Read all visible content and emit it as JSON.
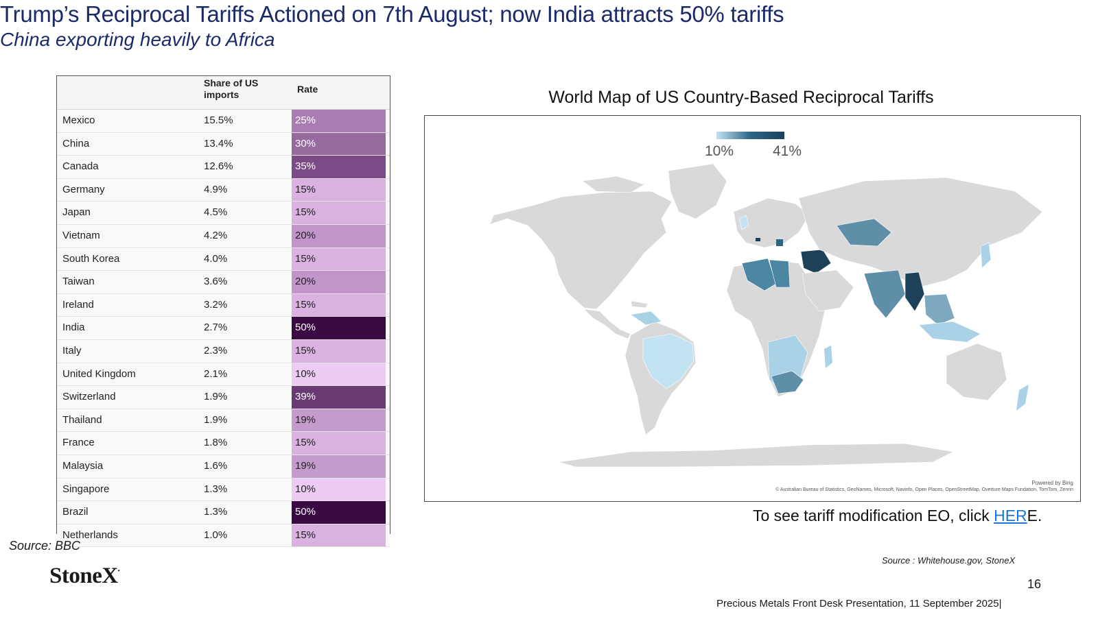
{
  "header": {
    "title": "Trump’s Reciprocal Tariffs Actioned on 7th August; now India attracts 50% tariffs",
    "subtitle": "China exporting heavily to Africa"
  },
  "table": {
    "col_share": "Share of US imports",
    "col_rate": "Rate",
    "rows": [
      {
        "country": "Mexico",
        "share": "15.5%",
        "rate": "25%",
        "color": "#a87db3",
        "text": "#ffffff"
      },
      {
        "country": "China",
        "share": "13.4%",
        "rate": "30%",
        "color": "#966a9f",
        "text": "#ffffff"
      },
      {
        "country": "Canada",
        "share": "12.6%",
        "rate": "35%",
        "color": "#7c4a86",
        "text": "#ffffff"
      },
      {
        "country": "Germany",
        "share": "4.9%",
        "rate": "15%",
        "color": "#d9b2df",
        "text": "#222222"
      },
      {
        "country": "Japan",
        "share": "4.5%",
        "rate": "15%",
        "color": "#d9b2df",
        "text": "#222222"
      },
      {
        "country": "Vietnam",
        "share": "4.2%",
        "rate": "20%",
        "color": "#c295ca",
        "text": "#222222"
      },
      {
        "country": "South Korea",
        "share": "4.0%",
        "rate": "15%",
        "color": "#d9b2df",
        "text": "#222222"
      },
      {
        "country": "Taiwan",
        "share": "3.6%",
        "rate": "20%",
        "color": "#c295ca",
        "text": "#222222"
      },
      {
        "country": "Ireland",
        "share": "3.2%",
        "rate": "15%",
        "color": "#d9b2df",
        "text": "#222222"
      },
      {
        "country": "India",
        "share": "2.7%",
        "rate": "50%",
        "color": "#3b0a45",
        "text": "#ffffff"
      },
      {
        "country": "Italy",
        "share": "2.3%",
        "rate": "15%",
        "color": "#d9b2df",
        "text": "#222222"
      },
      {
        "country": "United Kingdom",
        "share": "2.1%",
        "rate": "10%",
        "color": "#ecccf2",
        "text": "#222222"
      },
      {
        "country": "Switzerland",
        "share": "1.9%",
        "rate": "39%",
        "color": "#6b3a75",
        "text": "#ffffff"
      },
      {
        "country": "Thailand",
        "share": "1.9%",
        "rate": "19%",
        "color": "#c49ccc",
        "text": "#222222"
      },
      {
        "country": "France",
        "share": "1.8%",
        "rate": "15%",
        "color": "#d9b2df",
        "text": "#222222"
      },
      {
        "country": "Malaysia",
        "share": "1.6%",
        "rate": "19%",
        "color": "#c49ccc",
        "text": "#222222"
      },
      {
        "country": "Singapore",
        "share": "1.3%",
        "rate": "10%",
        "color": "#ecccf2",
        "text": "#222222"
      },
      {
        "country": "Brazil",
        "share": "1.3%",
        "rate": "50%",
        "color": "#3b0a45",
        "text": "#ffffff"
      },
      {
        "country": "Netherlands",
        "share": "1.0%",
        "rate": "15%",
        "color": "#d9b2df",
        "text": "#222222"
      }
    ]
  },
  "source_left": "Source: BBC",
  "logo": "StoneX",
  "map": {
    "title": "World Map of US Country-Based Reciprocal Tariffs",
    "legend_min": "10%",
    "legend_max": "41%",
    "powered_by": "Powered by Bing",
    "attribution": "© Australian Bureau of Statistics, GeoNames, Microsoft, Navinfo, Open Places, OpenStreetMap, Overture Maps Fundation, TomTom, Zenrin"
  },
  "eo": {
    "prefix": "To see tariff modification EO, click ",
    "link": "HER",
    "suffix": "E."
  },
  "source_right": "Source : Whitehouse.gov, StoneX",
  "page_number": "16",
  "footer": "Precious Metals Front Desk Presentation, 11 September 2025|"
}
